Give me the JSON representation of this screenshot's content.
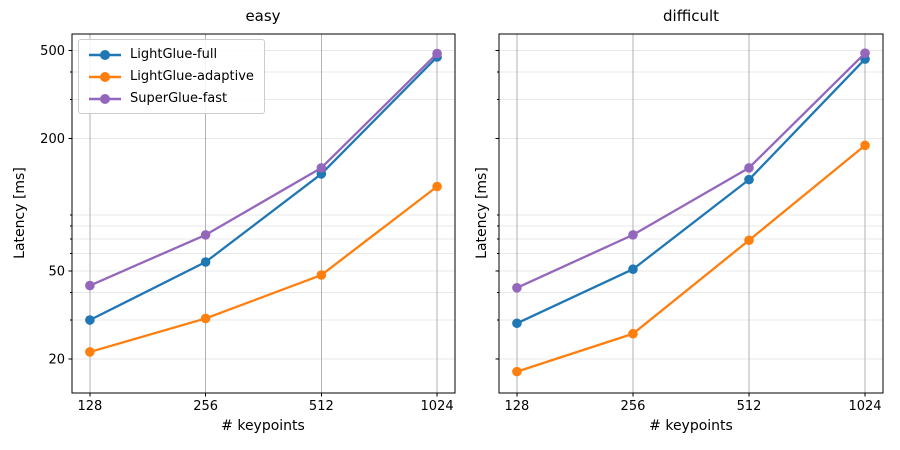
{
  "style": {
    "background": "#ffffff",
    "spine_color": "#000000",
    "grid_major_color": "#b2b2b2",
    "grid_minor_color": "#e8e8e8",
    "tick_color": "#000000",
    "text_color": "#000000"
  },
  "chart_data": [
    {
      "type": "line",
      "title": "easy",
      "xlabel": "# keypoints",
      "ylabel": "Latency [ms]",
      "xscale": "log2",
      "yscale": "log10",
      "x": [
        128,
        256,
        512,
        1024
      ],
      "xlim": [
        115,
        1140
      ],
      "ylim": [
        14,
        595
      ],
      "xticks": [
        128,
        256,
        512,
        1024
      ],
      "yticks": [
        20,
        50,
        100,
        200,
        500
      ],
      "yminorticks": [
        20,
        30,
        40,
        50,
        60,
        70,
        80,
        90,
        200,
        300,
        400,
        500
      ],
      "show_ytick_labels": true,
      "grid": true,
      "series": [
        {
          "name": "LightGlue-full",
          "color": "#1f77b4",
          "values": [
            30,
            55,
            138,
            468
          ]
        },
        {
          "name": "LightGlue-adaptive",
          "color": "#ff7f0e",
          "values": [
            21.5,
            30.5,
            48,
            121
          ]
        },
        {
          "name": "SuperGlue-fast",
          "color": "#9467bd",
          "values": [
            43,
            73,
            147,
            485
          ]
        }
      ],
      "legend": {
        "position": "upper left",
        "entries": [
          "LightGlue-full",
          "LightGlue-adaptive",
          "SuperGlue-fast"
        ]
      }
    },
    {
      "type": "line",
      "title": "difficult",
      "xlabel": "# keypoints",
      "ylabel": "Latency [ms]",
      "xscale": "log2",
      "yscale": "log10",
      "x": [
        128,
        256,
        512,
        1024
      ],
      "xlim": [
        115,
        1140
      ],
      "ylim": [
        14,
        595
      ],
      "xticks": [
        128,
        256,
        512,
        1024
      ],
      "yticks": [
        20,
        50,
        100,
        200,
        500
      ],
      "yminorticks": [
        20,
        30,
        40,
        50,
        60,
        70,
        80,
        90,
        200,
        300,
        400,
        500
      ],
      "show_ytick_labels": false,
      "grid": true,
      "series": [
        {
          "name": "LightGlue-full",
          "color": "#1f77b4",
          "values": [
            29,
            51,
            130,
            458
          ]
        },
        {
          "name": "LightGlue-adaptive",
          "color": "#ff7f0e",
          "values": [
            17.5,
            26,
            69,
            186
          ]
        },
        {
          "name": "SuperGlue-fast",
          "color": "#9467bd",
          "values": [
            42,
            73,
            147,
            487
          ]
        }
      ]
    }
  ]
}
